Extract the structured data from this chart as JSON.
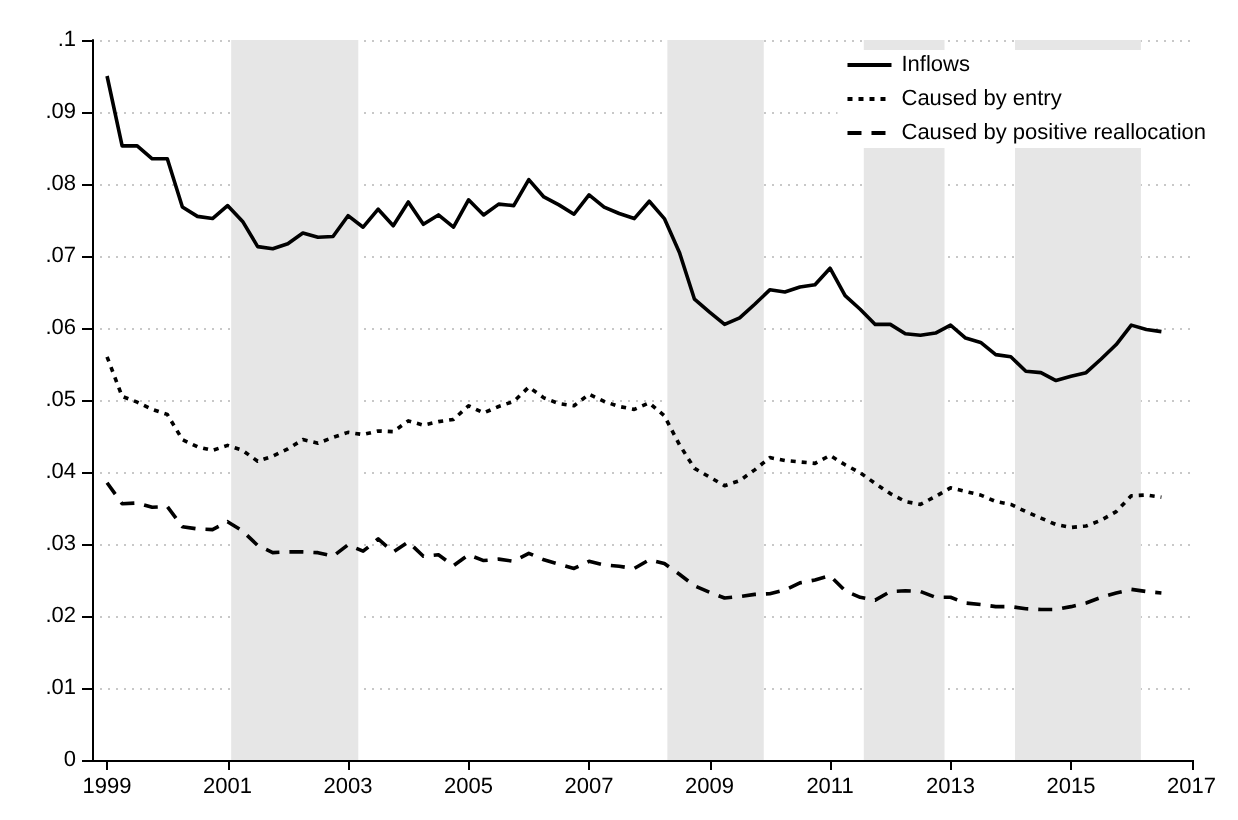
{
  "chart_data": {
    "type": "line",
    "x": [
      1999,
      1999.25,
      1999.5,
      1999.75,
      2000,
      2000.25,
      2000.5,
      2000.75,
      2001,
      2001.25,
      2001.5,
      2001.75,
      2002,
      2002.25,
      2002.5,
      2002.75,
      2003,
      2003.25,
      2003.5,
      2003.75,
      2004,
      2004.25,
      2004.5,
      2004.75,
      2005,
      2005.25,
      2005.5,
      2005.75,
      2006,
      2006.25,
      2006.5,
      2006.75,
      2007,
      2007.25,
      2007.5,
      2007.75,
      2008,
      2008.25,
      2008.5,
      2008.75,
      2009,
      2009.25,
      2009.5,
      2009.75,
      2010,
      2010.25,
      2010.5,
      2010.75,
      2011,
      2011.25,
      2011.5,
      2011.75,
      2012,
      2012.25,
      2012.5,
      2012.75,
      2013,
      2013.25,
      2013.5,
      2013.75,
      2014,
      2014.25,
      2014.5,
      2014.75,
      2015,
      2015.25,
      2015.5,
      2015.75,
      2016,
      2016.25,
      2016.5
    ],
    "series": [
      {
        "name": "Inflows",
        "color": "#000000",
        "line_style": "solid",
        "values": [
          0.095,
          0.0853,
          0.0853,
          0.0835,
          0.0835,
          0.0768,
          0.0755,
          0.0752,
          0.077,
          0.0748,
          0.0713,
          0.071,
          0.0717,
          0.0732,
          0.0726,
          0.0727,
          0.0756,
          0.074,
          0.0765,
          0.0742,
          0.0775,
          0.0744,
          0.0757,
          0.074,
          0.0778,
          0.0757,
          0.0772,
          0.077,
          0.0806,
          0.0782,
          0.0771,
          0.0758,
          0.0785,
          0.0768,
          0.0759,
          0.0752,
          0.0776,
          0.0752,
          0.0705,
          0.064,
          0.0622,
          0.0605,
          0.0614,
          0.0633,
          0.0653,
          0.065,
          0.0657,
          0.066,
          0.0683,
          0.0645,
          0.0626,
          0.0605,
          0.0605,
          0.0592,
          0.059,
          0.0593,
          0.0604,
          0.0586,
          0.058,
          0.0563,
          0.056,
          0.054,
          0.0538,
          0.0527,
          0.0533,
          0.0538,
          0.0557,
          0.0577,
          0.0604,
          0.0598,
          0.0595
        ]
      },
      {
        "name": "Caused by entry",
        "color": "#000000",
        "line_style": "dotted",
        "values": [
          0.056,
          0.0505,
          0.0497,
          0.0487,
          0.048,
          0.0445,
          0.0435,
          0.043,
          0.0437,
          0.043,
          0.0415,
          0.0422,
          0.0432,
          0.0445,
          0.044,
          0.0448,
          0.0455,
          0.0452,
          0.0457,
          0.0456,
          0.0471,
          0.0465,
          0.047,
          0.0473,
          0.0492,
          0.0482,
          0.0491,
          0.0498,
          0.0518,
          0.0503,
          0.0495,
          0.0492,
          0.0508,
          0.0498,
          0.0491,
          0.0487,
          0.0496,
          0.0478,
          0.0438,
          0.0405,
          0.0393,
          0.0381,
          0.0388,
          0.0403,
          0.042,
          0.0416,
          0.0414,
          0.0412,
          0.0423,
          0.041,
          0.0399,
          0.0384,
          0.037,
          0.0359,
          0.0355,
          0.0366,
          0.0378,
          0.0373,
          0.0368,
          0.0359,
          0.0355,
          0.0345,
          0.0336,
          0.0327,
          0.0323,
          0.0325,
          0.0333,
          0.0345,
          0.0367,
          0.0368,
          0.0365
        ]
      },
      {
        "name": "Caused by positive reallocation",
        "color": "#000000",
        "line_style": "dashed",
        "values": [
          0.0385,
          0.0356,
          0.0357,
          0.0351,
          0.0352,
          0.0324,
          0.0321,
          0.032,
          0.0331,
          0.0318,
          0.0298,
          0.0288,
          0.0289,
          0.0289,
          0.0288,
          0.0283,
          0.0299,
          0.029,
          0.0307,
          0.0289,
          0.0303,
          0.0283,
          0.0285,
          0.027,
          0.0285,
          0.0277,
          0.0279,
          0.0276,
          0.0287,
          0.0278,
          0.0272,
          0.0266,
          0.0276,
          0.0271,
          0.0269,
          0.0266,
          0.0278,
          0.0273,
          0.0258,
          0.0242,
          0.0233,
          0.0225,
          0.0227,
          0.023,
          0.0231,
          0.0236,
          0.0246,
          0.025,
          0.0256,
          0.0235,
          0.0226,
          0.0222,
          0.0234,
          0.0235,
          0.0234,
          0.0226,
          0.0226,
          0.0218,
          0.0216,
          0.0213,
          0.0213,
          0.021,
          0.0209,
          0.0209,
          0.0213,
          0.0218,
          0.0226,
          0.0232,
          0.0237,
          0.0234,
          0.0232
        ]
      }
    ],
    "bands": [
      {
        "axis": "x",
        "from": 2001.06,
        "to": 2003.17,
        "color": "#e6e6e6"
      },
      {
        "axis": "x",
        "from": 2008.3,
        "to": 2009.9,
        "color": "#e6e6e6"
      },
      {
        "axis": "x",
        "from": 2011.56,
        "to": 2012.9,
        "color": "#e6e6e6"
      },
      {
        "axis": "x",
        "from": 2014.07,
        "to": 2016.16,
        "color": "#e6e6e6"
      }
    ],
    "xlim": [
      1998.75,
      2017
    ],
    "xticks": [
      1999,
      2001,
      2003,
      2005,
      2007,
      2009,
      2011,
      2013,
      2015,
      2017
    ],
    "ylim": [
      0,
      0.1
    ],
    "yticks": [
      0,
      {
        "value": 0.01,
        "label": ".01"
      },
      {
        "value": 0.02,
        "label": ".02"
      },
      {
        "value": 0.03,
        "label": ".03"
      },
      {
        "value": 0.04,
        "label": ".04"
      },
      {
        "value": 0.05,
        "label": ".05"
      },
      {
        "value": 0.06,
        "label": ".06"
      },
      {
        "value": 0.07,
        "label": ".07"
      },
      {
        "value": 0.08,
        "label": ".08"
      },
      {
        "value": 0.09,
        "label": ".09"
      },
      {
        "value": 0.1,
        "label": ".1"
      }
    ],
    "grid": "y",
    "legend": "top right",
    "marker": "none"
  }
}
